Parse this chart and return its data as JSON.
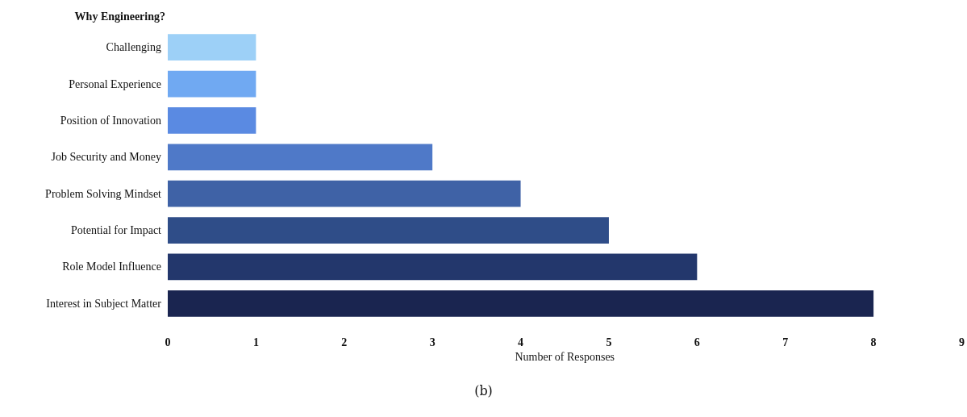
{
  "chart_data": {
    "type": "bar",
    "orientation": "horizontal",
    "title": "Why Engineering?",
    "xlabel": "Number of Responses",
    "categories": [
      "Challenging",
      "Personal Experience",
      "Position of Innovation",
      "Job Security and Money",
      "Problem Solving Mindset",
      "Potential for Impact",
      "Role Model Influence",
      "Interest in Subject Matter"
    ],
    "values": [
      1,
      1,
      1,
      3,
      4,
      5,
      6,
      8
    ],
    "colors": [
      "#9dd0f7",
      "#70a9f2",
      "#5a8ae2",
      "#4f79c8",
      "#3f62a6",
      "#2f4d88",
      "#23376c",
      "#1a2550"
    ],
    "xlim": [
      0,
      9
    ],
    "xticks": [
      0,
      1,
      2,
      3,
      4,
      5,
      6,
      7,
      8,
      9
    ],
    "grid": false,
    "annotations": [
      "(b)"
    ]
  }
}
